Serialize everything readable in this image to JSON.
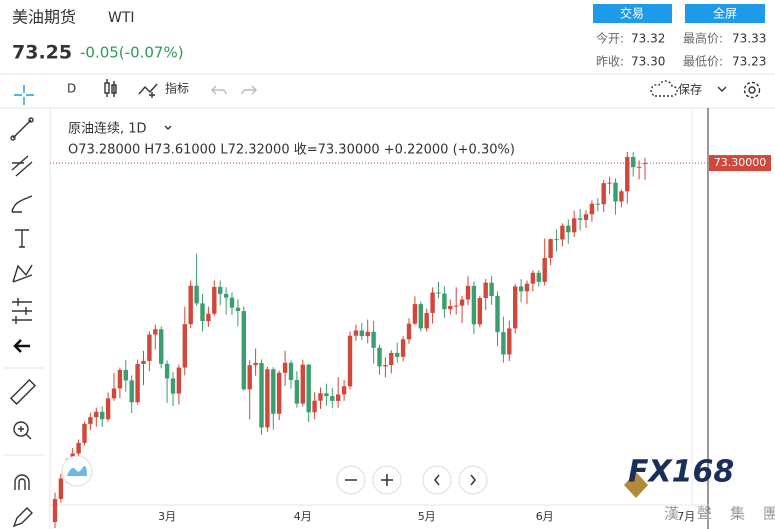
{
  "header": {
    "title": "美油期货",
    "symbol": "WTI",
    "price": "73.25",
    "change": "-0.05(-0.07%)",
    "buttons": [
      "交易",
      "全屏"
    ],
    "stats": [
      [
        "今开:",
        "73.32"
      ],
      [
        "最高价:",
        "73.33"
      ],
      [
        "昨收:",
        "73.30"
      ],
      [
        "最低价:",
        "73.23"
      ]
    ]
  },
  "toolbar": {
    "interval": "D",
    "indicators": "指标",
    "save": "保存"
  },
  "watermark": {
    "brand": "FX168",
    "company": "漢聲集團"
  },
  "chart_data": {
    "type": "candlestick",
    "title": "原油连续, 1D",
    "ohlc_label": "O73.28000  H73.61000  L72.32000  收=73.30000  +0.22000 (+0.30%)",
    "up_color": "#d2473b",
    "down_color": "#3a9e6d",
    "ylim": [
      53.2,
      75.95
    ],
    "last_price": {
      "value": 73.3,
      "label": "73.30000"
    },
    "categories": [
      null,
      null,
      null,
      null,
      null,
      null,
      null,
      null,
      null,
      null,
      null,
      null,
      null,
      null,
      null,
      null,
      null,
      null,
      null,
      "3月",
      null,
      null,
      null,
      null,
      null,
      null,
      null,
      null,
      null,
      null,
      null,
      null,
      null,
      null,
      null,
      null,
      null,
      null,
      null,
      null,
      null,
      null,
      "4月",
      null,
      null,
      null,
      null,
      null,
      null,
      null,
      null,
      null,
      null,
      null,
      null,
      null,
      null,
      null,
      null,
      null,
      null,
      null,
      null,
      "5月",
      null,
      null,
      null,
      null,
      null,
      null,
      null,
      null,
      null,
      null,
      null,
      null,
      null,
      null,
      null,
      null,
      null,
      null,
      null,
      "6月",
      null,
      null,
      null,
      null,
      null,
      null,
      null,
      null,
      null,
      null,
      null,
      null,
      null,
      null,
      null,
      null,
      null,
      null,
      null,
      null,
      null,
      null,
      null,
      "7月"
    ],
    "ohlc": [
      [
        52.2,
        53.93,
        51.85,
        53.55
      ],
      [
        53.55,
        55.04,
        53.33,
        54.76
      ],
      [
        54.76,
        55.95,
        54.5,
        55.69
      ],
      [
        55.69,
        56.55,
        55.12,
        56.23
      ],
      [
        56.23,
        57.05,
        55.8,
        56.85
      ],
      [
        56.85,
        58.1,
        56.7,
        57.97
      ],
      [
        57.97,
        58.62,
        57.6,
        58.36
      ],
      [
        58.36,
        58.91,
        57.8,
        58.68
      ],
      [
        58.68,
        59.0,
        57.79,
        58.24
      ],
      [
        58.24,
        59.82,
        58.1,
        59.47
      ],
      [
        59.47,
        60.95,
        59.33,
        60.05
      ],
      [
        60.05,
        61.28,
        59.48,
        61.14
      ],
      [
        61.14,
        61.73,
        59.86,
        60.52
      ],
      [
        60.52,
        60.82,
        58.6,
        59.24
      ],
      [
        59.24,
        61.75,
        59.1,
        61.49
      ],
      [
        61.49,
        62.26,
        60.25,
        61.67
      ],
      [
        61.67,
        63.4,
        61.07,
        63.22
      ],
      [
        63.22,
        63.81,
        62.35,
        63.53
      ],
      [
        63.53,
        63.7,
        61.23,
        61.5
      ],
      [
        61.5,
        61.7,
        59.2,
        60.64
      ],
      [
        60.64,
        61.01,
        59.02,
        59.75
      ],
      [
        59.75,
        61.45,
        59.1,
        61.28
      ],
      [
        61.28,
        64.86,
        60.82,
        63.83
      ],
      [
        63.83,
        66.4,
        63.6,
        66.09
      ],
      [
        66.09,
        67.98,
        64.9,
        65.05
      ],
      [
        65.05,
        65.6,
        63.4,
        64.01
      ],
      [
        64.01,
        64.86,
        63.68,
        64.44
      ],
      [
        64.44,
        66.4,
        64.3,
        66.02
      ],
      [
        66.02,
        66.4,
        64.93,
        65.61
      ],
      [
        65.61,
        66.0,
        64.4,
        65.39
      ],
      [
        65.39,
        65.7,
        64.38,
        64.8
      ],
      [
        64.8,
        65.3,
        63.7,
        64.6
      ],
      [
        64.6,
        64.87,
        59.92,
        60.0
      ],
      [
        60.0,
        61.71,
        58.23,
        61.42
      ],
      [
        61.42,
        62.4,
        60.8,
        61.55
      ],
      [
        61.55,
        61.75,
        57.32,
        57.76
      ],
      [
        57.76,
        61.32,
        57.5,
        61.18
      ],
      [
        61.18,
        61.3,
        57.63,
        58.56
      ],
      [
        58.56,
        61.1,
        58.2,
        60.97
      ],
      [
        60.97,
        62.27,
        60.2,
        61.56
      ],
      [
        61.56,
        61.7,
        60.04,
        60.55
      ],
      [
        60.55,
        61.07,
        58.92,
        59.16
      ],
      [
        59.16,
        61.74,
        59.0,
        61.45
      ],
      [
        61.45,
        61.5,
        58.07,
        58.65
      ],
      [
        58.65,
        59.83,
        58.25,
        59.33
      ],
      [
        59.33,
        60.11,
        58.85,
        59.77
      ],
      [
        59.77,
        60.33,
        59.04,
        59.6
      ],
      [
        59.6,
        60.08,
        58.9,
        59.32
      ],
      [
        59.32,
        60.72,
        58.91,
        59.7
      ],
      [
        59.7,
        60.55,
        59.33,
        60.18
      ],
      [
        60.18,
        63.4,
        60.0,
        63.15
      ],
      [
        63.15,
        63.8,
        62.85,
        63.46
      ],
      [
        63.46,
        63.9,
        62.9,
        63.13
      ],
      [
        63.13,
        64.1,
        62.71,
        63.38
      ],
      [
        63.38,
        64.03,
        61.51,
        62.44
      ],
      [
        62.44,
        62.62,
        60.85,
        61.35
      ],
      [
        61.35,
        61.88,
        60.71,
        61.43
      ],
      [
        61.43,
        62.3,
        60.93,
        62.14
      ],
      [
        62.14,
        62.75,
        61.56,
        61.91
      ],
      [
        61.91,
        63.13,
        61.64,
        62.94
      ],
      [
        62.94,
        64.18,
        62.68,
        63.86
      ],
      [
        63.86,
        65.47,
        63.75,
        65.01
      ],
      [
        65.01,
        65.17,
        63.4,
        63.58
      ],
      [
        63.58,
        64.74,
        63.4,
        64.49
      ],
      [
        64.49,
        66.0,
        63.86,
        65.69
      ],
      [
        65.69,
        66.33,
        65.35,
        65.63
      ],
      [
        65.63,
        66.06,
        64.2,
        64.71
      ],
      [
        64.71,
        65.28,
        64.39,
        64.9
      ],
      [
        64.9,
        66.0,
        64.4,
        64.92
      ],
      [
        64.92,
        65.5,
        63.9,
        65.28
      ],
      [
        65.28,
        66.65,
        64.94,
        66.08
      ],
      [
        66.08,
        66.33,
        63.25,
        63.82
      ],
      [
        63.82,
        65.5,
        63.65,
        65.37
      ],
      [
        65.37,
        66.48,
        64.66,
        66.27
      ],
      [
        66.27,
        66.67,
        64.97,
        65.49
      ],
      [
        65.49,
        65.75,
        62.54,
        63.36
      ],
      [
        63.36,
        64.27,
        61.56,
        62.05
      ],
      [
        62.05,
        64.03,
        61.66,
        63.58
      ],
      [
        63.58,
        66.18,
        63.28,
        66.05
      ],
      [
        66.05,
        66.48,
        65.12,
        65.76
      ],
      [
        65.76,
        66.4,
        65.0,
        66.21
      ],
      [
        66.21,
        67.0,
        65.76,
        66.85
      ],
      [
        66.85,
        67.01,
        66.05,
        66.32
      ],
      [
        66.32,
        68.87,
        66.1,
        67.72
      ],
      [
        67.72,
        68.87,
        67.31,
        68.83
      ],
      [
        68.83,
        69.4,
        68.1,
        68.81
      ],
      [
        68.81,
        69.76,
        68.4,
        69.62
      ],
      [
        69.62,
        70.0,
        68.55,
        69.23
      ],
      [
        69.23,
        70.5,
        68.95,
        70.05
      ],
      [
        70.05,
        70.6,
        69.34,
        69.96
      ],
      [
        69.96,
        70.53,
        69.48,
        70.29
      ],
      [
        70.29,
        71.1,
        69.85,
        70.91
      ],
      [
        70.91,
        71.24,
        70.46,
        70.88
      ],
      [
        70.88,
        72.3,
        70.42,
        72.12
      ],
      [
        72.12,
        72.5,
        71.46,
        72.15
      ],
      [
        72.15,
        72.4,
        70.27,
        71.04
      ],
      [
        71.04,
        71.76,
        70.7,
        71.64
      ],
      [
        71.64,
        73.96,
        70.92,
        73.66
      ],
      [
        73.66,
        73.94,
        72.5,
        73.06
      ],
      [
        73.06,
        73.46,
        72.34,
        73.08
      ],
      [
        73.28,
        73.61,
        72.32,
        73.3
      ],
      null,
      null,
      null,
      null,
      null,
      null,
      null
    ]
  }
}
